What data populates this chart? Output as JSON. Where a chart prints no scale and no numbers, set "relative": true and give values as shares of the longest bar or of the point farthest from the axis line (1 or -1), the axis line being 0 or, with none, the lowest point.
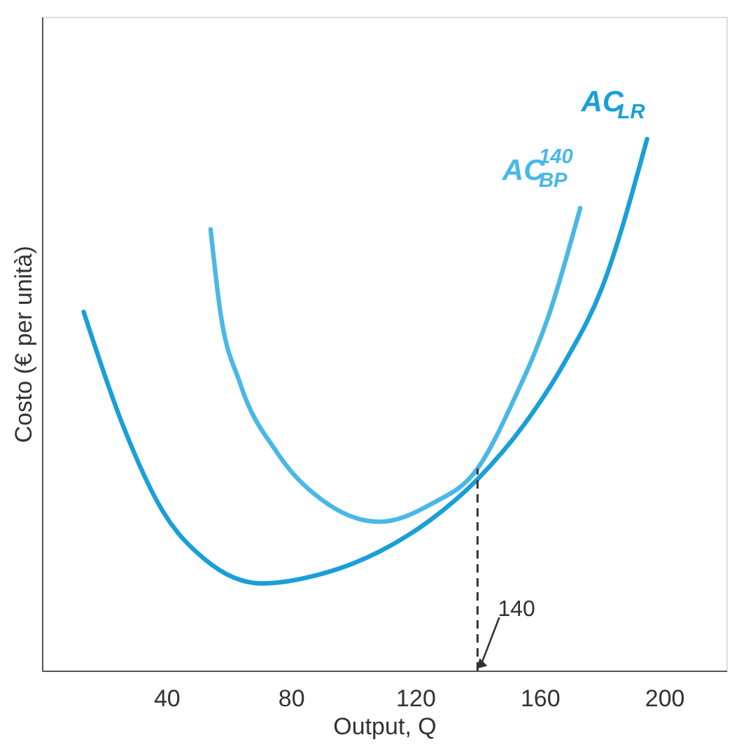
{
  "chart_data": {
    "type": "line",
    "relative": true,
    "xlabel": "Output, Q",
    "ylabel": "Costo (€ per unità)",
    "xlim": [
      0,
      220
    ],
    "xticks": [
      40,
      80,
      120,
      160,
      200
    ],
    "grid": false,
    "line_style": "solid",
    "marker": "none",
    "series": [
      {
        "name": "AC$_{LR}$",
        "color": "#1a9fd9",
        "x": [
          13.4,
          25.9,
          38.8,
          52.2,
          70.6,
          88.6,
          108.5,
          125,
          140,
          155,
          168,
          180,
          194.5
        ],
        "values": [
          0.675,
          0.463,
          0.3,
          0.21,
          0.164,
          0.18,
          0.224,
          0.284,
          0.36,
          0.463,
          0.58,
          0.72,
          1.0
        ]
      },
      {
        "name": "AC$^{140}$$_{BP}$",
        "color": "#4ab8e6",
        "x": [
          54.2,
          57.2,
          63.7,
          75.6,
          92,
          108.5,
          125,
          140,
          151.7,
          163,
          173
        ],
        "values": [
          0.83,
          0.68,
          0.54,
          0.41,
          0.313,
          0.28,
          0.313,
          0.38,
          0.51,
          0.67,
          0.87
        ]
      }
    ],
    "ref_lines": [
      {
        "axis": "x",
        "value": 140,
        "line_style": "dashed",
        "color": "#333333"
      }
    ],
    "annotations": [
      {
        "text": "140",
        "x": 140,
        "y": 0
      }
    ]
  }
}
